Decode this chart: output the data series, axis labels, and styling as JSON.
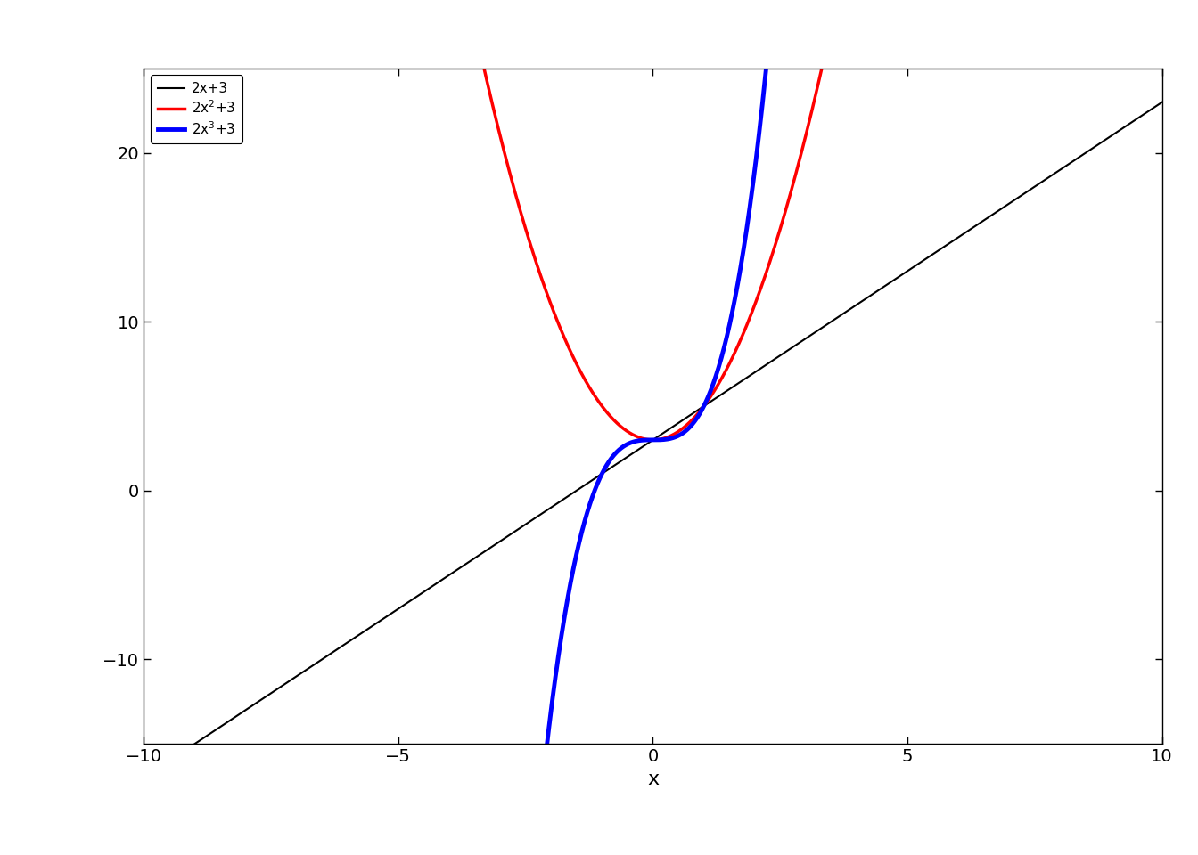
{
  "title": "",
  "xlabel": "x",
  "ylabel": "",
  "xlim": [
    -10,
    10
  ],
  "ylim": [
    -15,
    25
  ],
  "xticks": [
    -10,
    -5,
    0,
    5,
    10
  ],
  "yticks": [
    -10,
    0,
    10,
    20
  ],
  "functions": [
    {
      "label": "2x+3",
      "color": "black",
      "lw": 1.5
    },
    {
      "label": "2x$^2$+3",
      "color": "red",
      "lw": 2.5
    },
    {
      "label": "2x$^3$+3",
      "color": "blue",
      "lw": 3.5
    }
  ],
  "legend_fontsize": 11,
  "background_color": "#ffffff",
  "figsize": [
    13.44,
    9.6
  ],
  "dpi": 100,
  "tick_labelsize": 14,
  "xlabel_fontsize": 16
}
